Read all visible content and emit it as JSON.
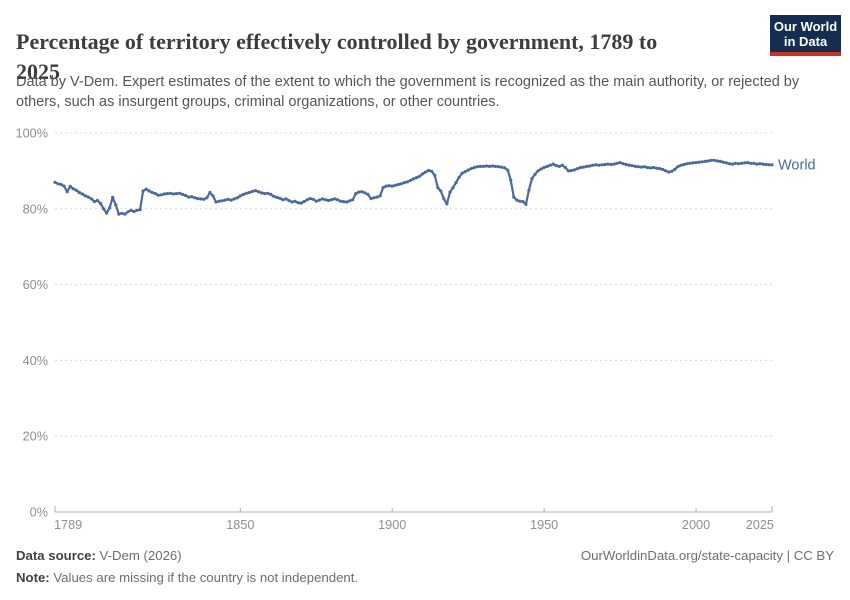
{
  "header": {
    "title_line1": "Percentage of territory effectively controlled by government, 1789 to",
    "title_line2": "2025",
    "subtitle": "Data by V-Dem. Expert estimates of the extent to which the government is recognized as the main authority, or rejected by others, such as insurgent groups, criminal organizations, or other countries.",
    "logo": {
      "line1": "Our World",
      "line2": "in Data"
    }
  },
  "footer": {
    "source_label": "Data source:",
    "source_value": " V-Dem (2026)",
    "note_label": "Note:",
    "note_value": " Values are missing if the country is not independent.",
    "attribution": "OurWorldinData.org/state-capacity | CC BY"
  },
  "colors": {
    "series_blue": "#4C6A9C",
    "gridline": "#d9d9d9",
    "axis": "#b0b0b0",
    "tick_text": "#8f8f8f",
    "logo_bg": "#142d50",
    "logo_stripe": "#c9342a"
  },
  "chart_data": {
    "type": "line",
    "title": "Percentage of territory effectively controlled by government, 1789 to 2025",
    "xlabel": "",
    "ylabel": "",
    "xlim": [
      1789,
      2025
    ],
    "ylim": [
      0,
      100
    ],
    "x_ticks": [
      1789,
      1850,
      1900,
      1950,
      2000,
      2025
    ],
    "y_ticks": [
      0,
      20,
      40,
      60,
      80,
      100
    ],
    "y_tick_suffix": "%",
    "grid": "dashed-horizontal",
    "legend": "end-of-line-label",
    "series": [
      {
        "name": "World",
        "color": "#4C6A9C",
        "points": [
          [
            1789,
            87.0
          ],
          [
            1790,
            86.6
          ],
          [
            1791,
            86.4
          ],
          [
            1792,
            86.0
          ],
          [
            1793,
            84.5
          ],
          [
            1794,
            85.9
          ],
          [
            1795,
            85.3
          ],
          [
            1796,
            84.9
          ],
          [
            1797,
            84.3
          ],
          [
            1798,
            83.9
          ],
          [
            1799,
            83.4
          ],
          [
            1800,
            83.1
          ],
          [
            1801,
            82.6
          ],
          [
            1802,
            81.9
          ],
          [
            1803,
            82.2
          ],
          [
            1804,
            81.4
          ],
          [
            1805,
            80.0
          ],
          [
            1806,
            78.9
          ],
          [
            1807,
            80.3
          ],
          [
            1808,
            83.0
          ],
          [
            1809,
            81.0
          ],
          [
            1810,
            78.6
          ],
          [
            1811,
            78.8
          ],
          [
            1812,
            78.6
          ],
          [
            1813,
            79.2
          ],
          [
            1814,
            79.6
          ],
          [
            1815,
            79.3
          ],
          [
            1816,
            79.6
          ],
          [
            1817,
            79.8
          ],
          [
            1818,
            84.7
          ],
          [
            1819,
            85.2
          ],
          [
            1820,
            84.7
          ],
          [
            1821,
            84.3
          ],
          [
            1822,
            84.0
          ],
          [
            1823,
            83.6
          ],
          [
            1824,
            83.7
          ],
          [
            1825,
            83.9
          ],
          [
            1826,
            84.0
          ],
          [
            1827,
            84.1
          ],
          [
            1828,
            83.9
          ],
          [
            1829,
            84.0
          ],
          [
            1830,
            84.1
          ],
          [
            1831,
            83.8
          ],
          [
            1832,
            83.5
          ],
          [
            1833,
            83.1
          ],
          [
            1834,
            83.2
          ],
          [
            1835,
            82.9
          ],
          [
            1836,
            82.7
          ],
          [
            1837,
            82.6
          ],
          [
            1838,
            82.5
          ],
          [
            1839,
            82.9
          ],
          [
            1840,
            84.3
          ],
          [
            1841,
            83.4
          ],
          [
            1842,
            81.8
          ],
          [
            1843,
            82.0
          ],
          [
            1844,
            82.1
          ],
          [
            1845,
            82.3
          ],
          [
            1846,
            82.5
          ],
          [
            1847,
            82.3
          ],
          [
            1848,
            82.6
          ],
          [
            1849,
            82.9
          ],
          [
            1850,
            83.4
          ],
          [
            1851,
            83.8
          ],
          [
            1852,
            84.1
          ],
          [
            1853,
            84.3
          ],
          [
            1854,
            84.6
          ],
          [
            1855,
            84.8
          ],
          [
            1856,
            84.5
          ],
          [
            1857,
            84.2
          ],
          [
            1858,
            84.0
          ],
          [
            1859,
            84.1
          ],
          [
            1860,
            83.8
          ],
          [
            1861,
            83.3
          ],
          [
            1862,
            83.0
          ],
          [
            1863,
            82.8
          ],
          [
            1864,
            82.4
          ],
          [
            1865,
            82.6
          ],
          [
            1866,
            82.2
          ],
          [
            1867,
            81.8
          ],
          [
            1868,
            82.0
          ],
          [
            1869,
            81.6
          ],
          [
            1870,
            81.5
          ],
          [
            1871,
            81.9
          ],
          [
            1872,
            82.4
          ],
          [
            1873,
            82.7
          ],
          [
            1874,
            82.5
          ],
          [
            1875,
            82.0
          ],
          [
            1876,
            82.3
          ],
          [
            1877,
            82.6
          ],
          [
            1878,
            82.4
          ],
          [
            1879,
            82.2
          ],
          [
            1880,
            82.4
          ],
          [
            1881,
            82.6
          ],
          [
            1882,
            82.4
          ],
          [
            1883,
            82.0
          ],
          [
            1884,
            81.9
          ],
          [
            1885,
            81.8
          ],
          [
            1886,
            82.1
          ],
          [
            1887,
            82.4
          ],
          [
            1888,
            84.0
          ],
          [
            1889,
            84.4
          ],
          [
            1890,
            84.5
          ],
          [
            1891,
            84.2
          ],
          [
            1892,
            83.8
          ],
          [
            1893,
            82.7
          ],
          [
            1894,
            82.9
          ],
          [
            1895,
            83.1
          ],
          [
            1896,
            83.4
          ],
          [
            1897,
            85.6
          ],
          [
            1898,
            86.0
          ],
          [
            1899,
            86.1
          ],
          [
            1900,
            86.0
          ],
          [
            1901,
            86.2
          ],
          [
            1902,
            86.4
          ],
          [
            1903,
            86.6
          ],
          [
            1904,
            86.9
          ],
          [
            1905,
            87.1
          ],
          [
            1906,
            87.5
          ],
          [
            1907,
            87.9
          ],
          [
            1908,
            88.2
          ],
          [
            1909,
            88.6
          ],
          [
            1910,
            89.2
          ],
          [
            1911,
            89.7
          ],
          [
            1912,
            90.1
          ],
          [
            1913,
            89.9
          ],
          [
            1914,
            88.8
          ],
          [
            1915,
            85.6
          ],
          [
            1916,
            84.7
          ],
          [
            1917,
            82.6
          ],
          [
            1918,
            81.3
          ],
          [
            1919,
            84.4
          ],
          [
            1920,
            85.6
          ],
          [
            1921,
            86.9
          ],
          [
            1922,
            88.3
          ],
          [
            1923,
            89.4
          ],
          [
            1924,
            89.8
          ],
          [
            1925,
            90.2
          ],
          [
            1926,
            90.6
          ],
          [
            1927,
            90.9
          ],
          [
            1928,
            91.1
          ],
          [
            1929,
            91.2
          ],
          [
            1930,
            91.2
          ],
          [
            1931,
            91.3
          ],
          [
            1932,
            91.2
          ],
          [
            1933,
            91.3
          ],
          [
            1934,
            91.2
          ],
          [
            1935,
            91.1
          ],
          [
            1936,
            91.0
          ],
          [
            1937,
            90.8
          ],
          [
            1938,
            90.2
          ],
          [
            1939,
            87.6
          ],
          [
            1940,
            83.1
          ],
          [
            1941,
            82.3
          ],
          [
            1942,
            82.0
          ],
          [
            1943,
            81.9
          ],
          [
            1944,
            81.2
          ],
          [
            1945,
            84.9
          ],
          [
            1946,
            88.0
          ],
          [
            1947,
            89.1
          ],
          [
            1948,
            90.0
          ],
          [
            1949,
            90.5
          ],
          [
            1950,
            90.9
          ],
          [
            1951,
            91.2
          ],
          [
            1952,
            91.5
          ],
          [
            1953,
            91.8
          ],
          [
            1954,
            91.4
          ],
          [
            1955,
            91.2
          ],
          [
            1956,
            91.5
          ],
          [
            1957,
            90.9
          ],
          [
            1958,
            90.0
          ],
          [
            1959,
            90.1
          ],
          [
            1960,
            90.3
          ],
          [
            1961,
            90.6
          ],
          [
            1962,
            90.9
          ],
          [
            1963,
            91.0
          ],
          [
            1964,
            91.2
          ],
          [
            1965,
            91.3
          ],
          [
            1966,
            91.5
          ],
          [
            1967,
            91.6
          ],
          [
            1968,
            91.5
          ],
          [
            1969,
            91.6
          ],
          [
            1970,
            91.7
          ],
          [
            1971,
            91.8
          ],
          [
            1972,
            91.7
          ],
          [
            1973,
            91.8
          ],
          [
            1974,
            92.0
          ],
          [
            1975,
            92.2
          ],
          [
            1976,
            91.9
          ],
          [
            1977,
            91.7
          ],
          [
            1978,
            91.5
          ],
          [
            1979,
            91.4
          ],
          [
            1980,
            91.2
          ],
          [
            1981,
            91.1
          ],
          [
            1982,
            91.0
          ],
          [
            1983,
            91.1
          ],
          [
            1984,
            90.9
          ],
          [
            1985,
            90.8
          ],
          [
            1986,
            90.9
          ],
          [
            1987,
            90.7
          ],
          [
            1988,
            90.6
          ],
          [
            1989,
            90.4
          ],
          [
            1990,
            90.0
          ],
          [
            1991,
            89.7
          ],
          [
            1992,
            89.9
          ],
          [
            1993,
            90.4
          ],
          [
            1994,
            91.1
          ],
          [
            1995,
            91.5
          ],
          [
            1996,
            91.7
          ],
          [
            1997,
            91.9
          ],
          [
            1998,
            92.0
          ],
          [
            1999,
            92.1
          ],
          [
            2000,
            92.2
          ],
          [
            2001,
            92.3
          ],
          [
            2002,
            92.4
          ],
          [
            2003,
            92.5
          ],
          [
            2004,
            92.6
          ],
          [
            2005,
            92.8
          ],
          [
            2006,
            92.8
          ],
          [
            2007,
            92.6
          ],
          [
            2008,
            92.5
          ],
          [
            2009,
            92.3
          ],
          [
            2010,
            92.1
          ],
          [
            2011,
            91.9
          ],
          [
            2012,
            91.8
          ],
          [
            2013,
            92.0
          ],
          [
            2014,
            91.9
          ],
          [
            2015,
            92.0
          ],
          [
            2016,
            92.1
          ],
          [
            2017,
            92.2
          ],
          [
            2018,
            92.0
          ],
          [
            2019,
            92.0
          ],
          [
            2020,
            91.8
          ],
          [
            2021,
            91.9
          ],
          [
            2022,
            91.8
          ],
          [
            2023,
            91.7
          ],
          [
            2024,
            91.6
          ],
          [
            2025,
            91.6
          ]
        ]
      }
    ]
  }
}
